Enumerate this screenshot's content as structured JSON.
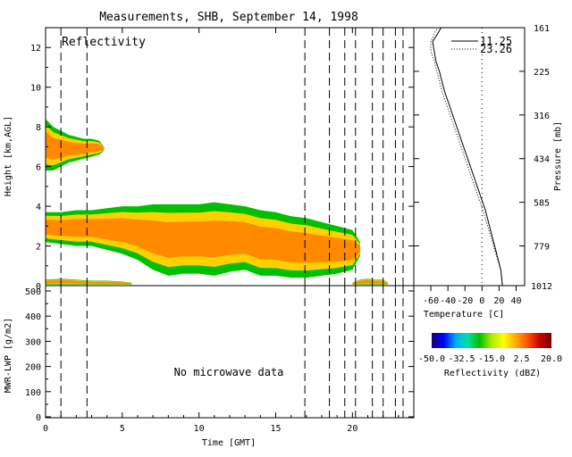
{
  "title": "Measurements, SHB, September 14, 1998",
  "reflectivity_label": "Reflectivity",
  "no_data_text": "No microwave data",
  "colors": {
    "colorbar_stops": [
      "#1a0072",
      "#0000ff",
      "#00aaff",
      "#00e0a0",
      "#00c000",
      "#aaee00",
      "#ffff00",
      "#ffaa00",
      "#ff5500",
      "#cc0000",
      "#7a0000"
    ],
    "echo_core": "#ff8a00",
    "echo_edge": "#00c000",
    "echo_mid": "#ffd000"
  },
  "chart_data": [
    {
      "type": "heatmap",
      "panel": "reflectivity",
      "xlabel": "",
      "ylabel": "Height [km,AGL]",
      "xlim": [
        0,
        24
      ],
      "ylim": [
        0,
        13
      ],
      "y_ticks": [
        "0",
        "2",
        "4",
        "6",
        "8",
        "10",
        "12"
      ],
      "echo_layers": [
        {
          "x": [
            0.0,
            0.5,
            1.0,
            1.5,
            2.0,
            2.5,
            3.0,
            3.5,
            3.8
          ],
          "base": [
            5.8,
            5.8,
            6.0,
            6.2,
            6.3,
            6.4,
            6.5,
            6.6,
            6.8
          ],
          "top": [
            8.4,
            8.0,
            7.8,
            7.6,
            7.5,
            7.4,
            7.4,
            7.3,
            7.0
          ]
        },
        {
          "x": [
            0.0,
            1.0,
            2.0,
            3.0,
            4.0,
            5.0,
            6.0,
            7.0,
            8.0,
            9.0,
            10.0,
            11.0,
            12.0,
            13.0,
            14.0,
            15.0,
            16.0,
            17.0,
            18.0,
            19.0,
            20.0,
            20.5
          ],
          "base": [
            2.2,
            2.1,
            2.0,
            2.0,
            1.8,
            1.6,
            1.3,
            0.8,
            0.5,
            0.6,
            0.6,
            0.5,
            0.7,
            0.8,
            0.5,
            0.5,
            0.4,
            0.4,
            0.5,
            0.6,
            0.8,
            1.5
          ],
          "top": [
            3.7,
            3.7,
            3.8,
            3.8,
            3.9,
            4.0,
            4.0,
            4.1,
            4.1,
            4.1,
            4.1,
            4.2,
            4.1,
            4.0,
            3.8,
            3.7,
            3.5,
            3.4,
            3.2,
            3.0,
            2.8,
            2.2
          ]
        },
        {
          "x": [
            0.0,
            1.0,
            2.0,
            3.0,
            4.0,
            5.0,
            5.6
          ],
          "base": [
            0.05,
            0.05,
            0.05,
            0.05,
            0.05,
            0.05,
            0.05
          ],
          "top": [
            0.3,
            0.35,
            0.3,
            0.25,
            0.25,
            0.2,
            0.15
          ]
        },
        {
          "x": [
            20.0,
            20.5,
            21.0,
            21.5,
            22.0,
            22.3
          ],
          "base": [
            0.05,
            0.05,
            0.05,
            0.05,
            0.05,
            0.05
          ],
          "top": [
            0.15,
            0.3,
            0.35,
            0.3,
            0.3,
            0.15
          ]
        }
      ],
      "vertical_lines_x": [
        1.0,
        2.7,
        16.9,
        18.5,
        19.5,
        20.2,
        21.3,
        22.0,
        22.8,
        23.3
      ]
    },
    {
      "type": "line",
      "panel": "sounding",
      "xlabel": "Temperature [C]",
      "ylabel": "Pressure [mb]",
      "x_ticks": [
        "-60",
        "-40",
        "-20",
        "0",
        "20",
        "40"
      ],
      "xlim": [
        -80,
        50
      ],
      "ylim": [
        0,
        13
      ],
      "pressure_labels": [
        {
          "label": "161",
          "height": 13.0
        },
        {
          "label": "225",
          "height": 10.8
        },
        {
          "label": "316",
          "height": 8.6
        },
        {
          "label": "434",
          "height": 6.4
        },
        {
          "label": "585",
          "height": 4.2
        },
        {
          "label": "779",
          "height": 2.0
        },
        {
          "label": "1012",
          "height": 0.0
        }
      ],
      "series": [
        {
          "name": "11.25",
          "style": "solid",
          "x": [
            24,
            22,
            16,
            10,
            4,
            -4,
            -12,
            -20,
            -28,
            -36,
            -44,
            -50,
            -54,
            -56,
            -58,
            -52,
            -48
          ],
          "y": [
            0,
            0.8,
            1.8,
            2.8,
            3.8,
            4.8,
            5.8,
            6.8,
            7.8,
            8.8,
            9.8,
            10.8,
            11.3,
            11.8,
            12.3,
            12.7,
            13.0
          ]
        },
        {
          "name": "23.26",
          "style": "dotted",
          "x": [
            24,
            22,
            15,
            8,
            1,
            -7,
            -15,
            -23,
            -31,
            -39,
            -47,
            -53,
            -56,
            -60,
            -60,
            -56,
            -52
          ],
          "y": [
            0,
            0.8,
            1.8,
            2.8,
            3.8,
            4.8,
            5.8,
            6.8,
            7.8,
            8.8,
            9.8,
            10.8,
            11.3,
            11.8,
            12.3,
            12.7,
            13.0
          ]
        }
      ],
      "reference_line_x": 0
    },
    {
      "type": "line",
      "panel": "lwp",
      "xlabel": "Time [GMT]",
      "ylabel": "MWR-LWP [g/m2]",
      "xlim": [
        0,
        24
      ],
      "ylim": [
        0,
        500
      ],
      "x_ticks": [
        "0",
        "5",
        "10",
        "15",
        "20"
      ],
      "y_ticks": [
        "0",
        "100",
        "200",
        "300",
        "400",
        "500"
      ],
      "series": [],
      "vertical_lines_x": [
        1.0,
        2.7,
        16.9,
        18.5,
        19.5,
        20.2,
        21.3,
        22.0,
        22.8,
        23.3
      ]
    },
    {
      "type": "heatmap",
      "panel": "colorbar",
      "xlabel": "Reflectivity (dBZ)",
      "tick_labels": [
        "-50.0",
        "-32.5",
        "-15.0",
        "2.5",
        "20.0"
      ],
      "range": [
        -50,
        20
      ]
    }
  ]
}
